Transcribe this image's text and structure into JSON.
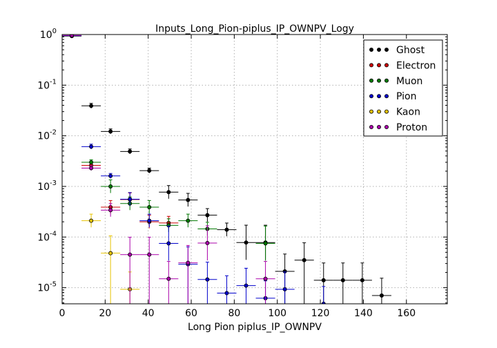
{
  "chart_data": {
    "type": "scatter",
    "title": "Inputs_Long_Pion-piplus_IP_OWNPV_Logy",
    "xlabel": "Long Pion piplus_IP_OWNPV",
    "ylabel": "",
    "xlim": [
      0,
      179
    ],
    "ylim": [
      4.8e-06,
      1.0
    ],
    "yscale": "log",
    "grid": true,
    "legend_position": "top-right",
    "x_ticks": [
      "0",
      "20",
      "40",
      "60",
      "80",
      "100",
      "120",
      "140",
      "160"
    ],
    "y_ticks": [
      {
        "base": "10",
        "exp": "0"
      },
      {
        "base": "10",
        "exp": "-1"
      },
      {
        "base": "10",
        "exp": "-2"
      },
      {
        "base": "10",
        "exp": "-3"
      },
      {
        "base": "10",
        "exp": "-4"
      },
      {
        "base": "10",
        "exp": "-5"
      }
    ],
    "x_bin_half_width": 4.5,
    "series": [
      {
        "name": "Ghost",
        "color": "#000000",
        "points": [
          {
            "x": 4.5,
            "y": 0.93
          },
          {
            "x": 13.5,
            "y": 0.039
          },
          {
            "x": 22.5,
            "y": 0.0122
          },
          {
            "x": 31.5,
            "y": 0.0049
          },
          {
            "x": 40.5,
            "y": 0.00205
          },
          {
            "x": 49.5,
            "y": 0.00077
          },
          {
            "x": 58.5,
            "y": 0.00054
          },
          {
            "x": 67.5,
            "y": 0.00027
          },
          {
            "x": 76.5,
            "y": 0.00014
          },
          {
            "x": 85.5,
            "y": 7.8e-05
          },
          {
            "x": 94.5,
            "y": 7.8e-05
          },
          {
            "x": 103.5,
            "y": 2.1e-05
          },
          {
            "x": 112.5,
            "y": 3.5e-05
          },
          {
            "x": 121.5,
            "y": 1.4e-05
          },
          {
            "x": 130.5,
            "y": 1.4e-05
          },
          {
            "x": 139.5,
            "y": 1.4e-05
          },
          {
            "x": 148.5,
            "y": 7e-06
          }
        ]
      },
      {
        "name": "Electron",
        "color": "#cc0000",
        "points": [
          {
            "x": 13.5,
            "y": 0.0026
          },
          {
            "x": 22.5,
            "y": 0.00039
          },
          {
            "x": 31.5,
            "y": 0.00055
          },
          {
            "x": 40.5,
            "y": 0.0002
          },
          {
            "x": 49.5,
            "y": 0.00019
          }
        ]
      },
      {
        "name": "Muon",
        "color": "#007700",
        "points": [
          {
            "x": 4.5,
            "y": 0.95
          },
          {
            "x": 13.5,
            "y": 0.003
          },
          {
            "x": 22.5,
            "y": 0.001
          },
          {
            "x": 31.5,
            "y": 0.00046
          },
          {
            "x": 40.5,
            "y": 0.00039
          },
          {
            "x": 49.5,
            "y": 0.00017
          },
          {
            "x": 58.5,
            "y": 0.00021
          },
          {
            "x": 67.5,
            "y": 0.000145
          },
          {
            "x": 94.5,
            "y": 7.5e-05
          }
        ]
      },
      {
        "name": "Pion",
        "color": "#0000cc",
        "points": [
          {
            "x": 4.5,
            "y": 0.95
          },
          {
            "x": 13.5,
            "y": 0.0061
          },
          {
            "x": 22.5,
            "y": 0.00161
          },
          {
            "x": 31.5,
            "y": 0.00056
          },
          {
            "x": 40.5,
            "y": 0.00021
          },
          {
            "x": 49.5,
            "y": 7.5e-05
          },
          {
            "x": 58.5,
            "y": 2.9e-05
          },
          {
            "x": 67.5,
            "y": 1.45e-05
          },
          {
            "x": 76.5,
            "y": 7.8e-06
          },
          {
            "x": 85.5,
            "y": 1.1e-05
          },
          {
            "x": 94.5,
            "y": 6.2e-06
          },
          {
            "x": 103.5,
            "y": 9.3e-06
          },
          {
            "x": 121.5,
            "y": 4.8e-06
          }
        ]
      },
      {
        "name": "Kaon",
        "color": "#e6c300",
        "points": [
          {
            "x": 13.5,
            "y": 0.00021
          },
          {
            "x": 22.5,
            "y": 4.8e-05
          },
          {
            "x": 31.5,
            "y": 9.3e-06
          }
        ]
      },
      {
        "name": "Proton",
        "color": "#aa00aa",
        "points": [
          {
            "x": 4.5,
            "y": 0.96
          },
          {
            "x": 13.5,
            "y": 0.0023
          },
          {
            "x": 22.5,
            "y": 0.00034
          },
          {
            "x": 31.5,
            "y": 4.5e-05
          },
          {
            "x": 40.5,
            "y": 4.5e-05
          },
          {
            "x": 49.5,
            "y": 1.5e-05
          },
          {
            "x": 58.5,
            "y": 3.1e-05
          },
          {
            "x": 67.5,
            "y": 7.6e-05
          },
          {
            "x": 94.5,
            "y": 1.5e-05
          }
        ]
      }
    ]
  }
}
